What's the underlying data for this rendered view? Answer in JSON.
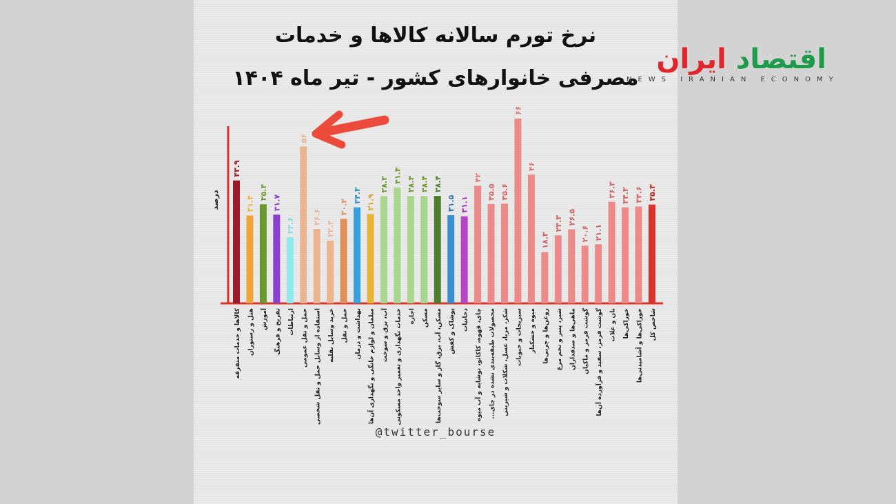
{
  "title": {
    "line1": "نرخ تورم سالانه کالاها و خدمات",
    "line2": "مصرفی خانوارهای کشور - تیر ماه ۱۴۰۴"
  },
  "handle": "@twitter_bourse",
  "logo": {
    "fa_green": "اقتصاد",
    "fa_red": "ایران",
    "en": "NEWS  IRANIAN ECONOMY"
  },
  "chart_data": {
    "type": "bar",
    "title": "نرخ تورم سالانه کالاها و خدمات مصرفی خانوارهای کشور - تیر ماه ۱۴۰۴",
    "xlabel": "",
    "ylabel": "درصد",
    "ylim": [
      0,
      66
    ],
    "grid": false,
    "annotation": "arrow pointing to حمل و نقل عمومی",
    "categories": [
      "کالاها و خدمات متفرقه",
      "هتل و رستوران",
      "آموزش",
      "تفریح و فرهنگ",
      "ارتباطات",
      "حمل و نقل عمومی",
      "استفاده از وسایل حمل و نقل شخصی",
      "خرید وسایل نقلیه",
      "حمل و نقل",
      "بهداشت و درمان",
      "مبلمان و لوازم خانگی و نگهداری آن‌ها",
      "آب، برق و سوخت",
      "خدمات نگهداری و تعمیر واحد مسکونی",
      "اجاره",
      "مسکن",
      "مسکن، آب، برق، گاز و سایر سوخت‌ها",
      "پوشاک و کفش",
      "دخانیات",
      "چای، قهوه، کاکائو، نوشابه و آب میوه",
      "محصولات طبقه‌بندی نشده در جای...",
      "شکر، مربا، عسل، شکلات و شیرینی",
      "سبزیجات و حبوبات",
      "میوه و خشکبار",
      "روغن‌ها و چربی‌ها",
      "شیر، پنیر و تخم مرغ",
      "ماهی‌ها و صدفداران",
      "گوشت قرمز و ماکیان",
      "گوشت قرمز، سفید و فرآورده آن‌ها",
      "نان و غلات",
      "خوراکی‌ها",
      "خوراکی‌ها و آشامیدنی‌ها",
      "شاخص کل"
    ],
    "values": [
      43.9,
      31.4,
      35.4,
      31.7,
      23.6,
      56,
      26.6,
      22.4,
      30.2,
      34.3,
      31.9,
      38.3,
      41.4,
      38.4,
      38.4,
      38.4,
      31.5,
      31.1,
      42,
      35.5,
      35.6,
      66,
      46,
      18.3,
      24.3,
      26.5,
      20.6,
      21.1,
      36.3,
      34.3,
      34.6,
      35.3
    ],
    "labels": [
      "۴۳.۹",
      "۳۱.۴",
      "۳۵.۴",
      "۳۱.۷",
      "۲۳.۶",
      "۵۶",
      "۲۶.۶",
      "۲۲.۴",
      "۳۰.۲",
      "۳۴.۳",
      "۳۱.۹",
      "۳۸.۳",
      "۴۱.۴",
      "۳۸.۴",
      "۳۸.۴",
      "۳۸.۴",
      "۳۱.۵",
      "۳۱.۱",
      "۴۲",
      "۳۵.۵",
      "۳۵.۶",
      "۶۶",
      "۴۶",
      "۱۸.۳",
      "۲۴.۳",
      "۲۶.۵",
      "۲۰.۶",
      "۲۱.۱",
      "۳۶.۳",
      "۳۴.۳",
      "۳۴.۶",
      "۳۵.۳"
    ],
    "colors": [
      "#9b1b2a",
      "#f0a53a",
      "#6a9a2e",
      "#8a3fd0",
      "#8fe8ee",
      "#eab48f",
      "#eab48f",
      "#eab48f",
      "#e0905a",
      "#3a9fe0",
      "#e8b43a",
      "#a8d68e",
      "#a8d68e",
      "#a8d68e",
      "#a8d68e",
      "#4f7d2e",
      "#3a8fcf",
      "#b446c6",
      "#ec8a8a",
      "#ec8a8a",
      "#ec8a8a",
      "#ec8a8a",
      "#ec8a8a",
      "#ec8a8a",
      "#ec8a8a",
      "#ec8a8a",
      "#ec8a8a",
      "#ec8a8a",
      "#ec8a8a",
      "#ec8a8a",
      "#ec8a8a",
      "#d9342b"
    ],
    "label_colors": [
      "#9b1b2a",
      "#e8b43a",
      "#6a9a2e",
      "#8a3fd0",
      "#7fd9e0",
      "#e8b49a",
      "#e8b49a",
      "#e8b49a",
      "#e0905a",
      "#2f8fd0",
      "#d6a52a",
      "#6a9a2e",
      "#6a9a2e",
      "#6a9a2e",
      "#6a9a2e",
      "#4f7d2e",
      "#2f6fb0",
      "#9a2fb0",
      "#e07070",
      "#d06060",
      "#d06060",
      "#e07070",
      "#e07070",
      "#d06060",
      "#d06060",
      "#d06060",
      "#d06060",
      "#d06060",
      "#d06060",
      "#d06060",
      "#d06060",
      "#c0201b"
    ]
  },
  "colors": {
    "axis": "#d9342b",
    "arrow": "#ec4a3a"
  }
}
